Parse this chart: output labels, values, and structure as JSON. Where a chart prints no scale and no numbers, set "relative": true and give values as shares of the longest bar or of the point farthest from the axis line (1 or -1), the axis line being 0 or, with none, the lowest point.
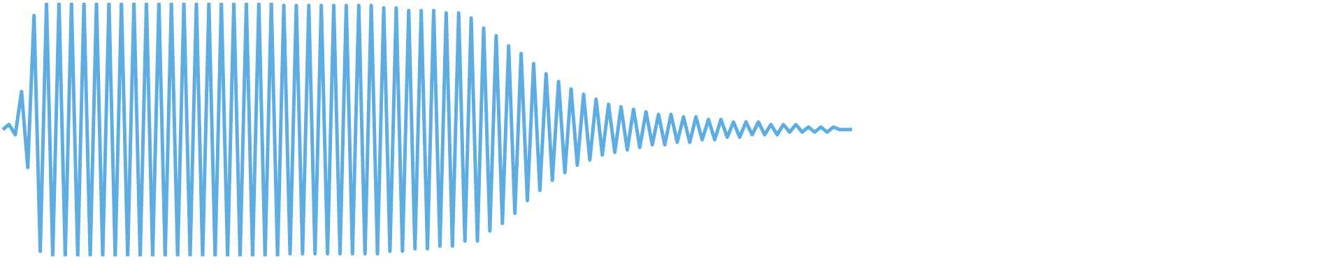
{
  "chart_data": {
    "type": "line",
    "relative": true,
    "grid": false,
    "legend": false,
    "marker": "none",
    "line_style": "solid",
    "categories": [
      null,
      null,
      null,
      null,
      null,
      null,
      null,
      null,
      null,
      null,
      null,
      null,
      null,
      null,
      null,
      null,
      null,
      null,
      null,
      null,
      null,
      null,
      null,
      null,
      null,
      null,
      null,
      null,
      null,
      null,
      null,
      null,
      null,
      null,
      null,
      null,
      null,
      null,
      null,
      null,
      null,
      null,
      null,
      null,
      null,
      null,
      null,
      null,
      null,
      null,
      null,
      null,
      null,
      null,
      null,
      null,
      null,
      null,
      null,
      null,
      null,
      null,
      null,
      null,
      null,
      null,
      null,
      null,
      null,
      null,
      null,
      null,
      null,
      null,
      null,
      null,
      null,
      null,
      null,
      null,
      null,
      null,
      null,
      null,
      null,
      null,
      null,
      null,
      null,
      null,
      null,
      null,
      null,
      null,
      null,
      null,
      null,
      null,
      null,
      null,
      null,
      null,
      null,
      null,
      null,
      null,
      null,
      null,
      null,
      null,
      null,
      null,
      null,
      null,
      null,
      null,
      null,
      null,
      null,
      null,
      null,
      null,
      null,
      null,
      null,
      null,
      null,
      null,
      null,
      null,
      null,
      null,
      null,
      null,
      null,
      null,
      null,
      null,
      null,
      null,
      null,
      null,
      null,
      null,
      null,
      null,
      null,
      null,
      null,
      null,
      null,
      null,
      null,
      null,
      null,
      null,
      null,
      null,
      null,
      null,
      null,
      null,
      null,
      null,
      null,
      null,
      null,
      null,
      null,
      null,
      null,
      null,
      null,
      null,
      null,
      null,
      null,
      null,
      null,
      null,
      null,
      null,
      null,
      null,
      null,
      null,
      null,
      null,
      null,
      null,
      null,
      null,
      null,
      null,
      null,
      null,
      null,
      null,
      null,
      null,
      null,
      null,
      null,
      null,
      null,
      null,
      null,
      null,
      null,
      null,
      null,
      null,
      null,
      null,
      null
    ],
    "series": [
      {
        "color": "#5dade2",
        "values": [
          0.5,
          0.52,
          0.48,
          0.65,
          0.35,
          0.95,
          0.02,
          1,
          0,
          1,
          0,
          1,
          0,
          1,
          0,
          1,
          0,
          1,
          0,
          1,
          0,
          1,
          0,
          1,
          0,
          1,
          0,
          1,
          0,
          1,
          0,
          1,
          0,
          1,
          0,
          1,
          0,
          1,
          0,
          1,
          0,
          1,
          0,
          1,
          0,
          0.99,
          0.01,
          0.99,
          0.01,
          0.99,
          0.01,
          0.99,
          0.01,
          0.99,
          0.01,
          0.99,
          0.01,
          0.99,
          0.01,
          0.99,
          0.01,
          0.98,
          0.02,
          0.98,
          0.02,
          0.97,
          0.03,
          0.97,
          0.03,
          0.97,
          0.04,
          0.96,
          0.04,
          0.96,
          0.06,
          0.94,
          0.06,
          0.9,
          0.1,
          0.87,
          0.13,
          0.83,
          0.17,
          0.8,
          0.22,
          0.76,
          0.26,
          0.72,
          0.3,
          0.69,
          0.33,
          0.66,
          0.36,
          0.64,
          0.38,
          0.62,
          0.4,
          0.6,
          0.41,
          0.59,
          0.42,
          0.58,
          0.43,
          0.57,
          0.44,
          0.56,
          0.44,
          0.56,
          0.45,
          0.55,
          0.45,
          0.55,
          0.46,
          0.54,
          0.46,
          0.54,
          0.47,
          0.53,
          0.47,
          0.53,
          0.48,
          0.53,
          0.48,
          0.52,
          0.48,
          0.52,
          0.49,
          0.52,
          0.49,
          0.51,
          0.49,
          0.51,
          0.49,
          0.51,
          0.5,
          0.5,
          0.5,
          null,
          null,
          null,
          null,
          null,
          null,
          null,
          null,
          null,
          null,
          null,
          null,
          null,
          null,
          null,
          null,
          null,
          null,
          null,
          null,
          null,
          null,
          null,
          null,
          null,
          null,
          null,
          null,
          null,
          null,
          null,
          null,
          null,
          null,
          null,
          null,
          null,
          null,
          null,
          null,
          null,
          null,
          null,
          null,
          null,
          null,
          null,
          null,
          null,
          null,
          null,
          null,
          null,
          null,
          null,
          null,
          null,
          null,
          null,
          null,
          null,
          null,
          null,
          null,
          null,
          null,
          null,
          null,
          null,
          null,
          null,
          null,
          null,
          null,
          null,
          null,
          null,
          null
        ]
      }
    ]
  }
}
